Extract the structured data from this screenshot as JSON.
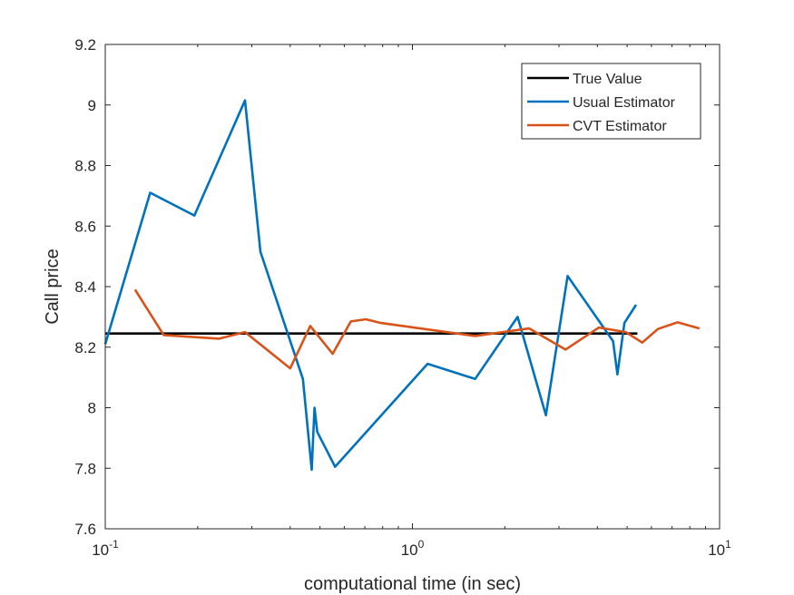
{
  "chart_data": {
    "type": "line",
    "title": "",
    "xlabel": "computational time (in sec)",
    "ylabel": "Call price",
    "xscale": "log",
    "xlim": [
      0.1,
      10
    ],
    "ylim": [
      7.6,
      9.2
    ],
    "x_ticks": [
      {
        "value": 0.1,
        "base": "10",
        "exp": "-1"
      },
      {
        "value": 1,
        "base": "10",
        "exp": "0"
      },
      {
        "value": 10,
        "base": "10",
        "exp": "1"
      }
    ],
    "y_ticks": [
      {
        "value": 7.6,
        "label": "7.6"
      },
      {
        "value": 7.8,
        "label": "7.8"
      },
      {
        "value": 8.0,
        "label": "8"
      },
      {
        "value": 8.2,
        "label": "8.2"
      },
      {
        "value": 8.4,
        "label": "8.4"
      },
      {
        "value": 8.6,
        "label": "8.6"
      },
      {
        "value": 8.8,
        "label": "8.8"
      },
      {
        "value": 9.0,
        "label": "9"
      },
      {
        "value": 9.2,
        "label": "9.2"
      }
    ],
    "grid": false,
    "legend": "top-right",
    "series": [
      {
        "name": "True Value",
        "color": "#000000",
        "x": [
          0.1,
          5.4
        ],
        "y": [
          8.245,
          8.245
        ]
      },
      {
        "name": "Usual Estimator",
        "color": "#0072BD",
        "x": [
          0.1,
          0.14,
          0.195,
          0.285,
          0.32,
          0.44,
          0.47,
          0.48,
          0.49,
          0.56,
          1.12,
          1.6,
          2.2,
          2.72,
          3.2,
          4.5,
          4.65,
          4.9,
          5.35
        ],
        "y": [
          8.21,
          8.71,
          8.635,
          9.015,
          8.515,
          8.095,
          7.795,
          8.0,
          7.92,
          7.805,
          8.145,
          8.095,
          8.3,
          7.975,
          8.435,
          8.22,
          8.11,
          8.28,
          8.34
        ]
      },
      {
        "name": "CVT Estimator",
        "color": "#D95319",
        "x": [
          0.125,
          0.155,
          0.235,
          0.285,
          0.4,
          0.465,
          0.55,
          0.63,
          0.705,
          0.79,
          1.6,
          2.4,
          3.15,
          4.05,
          4.95,
          5.6,
          6.3,
          7.3,
          8.6
        ],
        "y": [
          8.39,
          8.24,
          8.228,
          8.25,
          8.13,
          8.27,
          8.178,
          8.285,
          8.292,
          8.28,
          8.237,
          8.262,
          8.192,
          8.265,
          8.25,
          8.215,
          8.26,
          8.282,
          8.262
        ]
      }
    ]
  }
}
